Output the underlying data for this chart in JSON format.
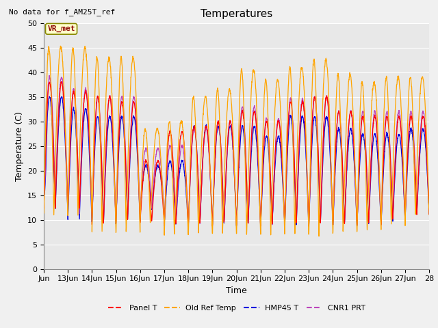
{
  "title": "Temperatures",
  "xlabel": "Time",
  "ylabel": "Temperature (C)",
  "top_left_note": "No data for f_AM25T_ref",
  "annotation_box": "VR_met",
  "ylim": [
    0,
    50
  ],
  "yticks": [
    0,
    5,
    10,
    15,
    20,
    25,
    30,
    35,
    40,
    45,
    50
  ],
  "x_start_day": 12,
  "x_end_day": 28,
  "xtick_days": [
    12,
    13,
    14,
    15,
    16,
    17,
    18,
    19,
    20,
    21,
    22,
    23,
    24,
    25,
    26,
    27,
    28
  ],
  "xtick_labels": [
    "Jun",
    "13Jun",
    "14Jun",
    "15Jun",
    "16Jun",
    "17Jun",
    "18Jun",
    "19Jun",
    "20Jun",
    "21Jun",
    "22Jun",
    "23Jun",
    "24Jun",
    "25Jun",
    "26Jun",
    "27Jun",
    "28"
  ],
  "colors": {
    "panel_t": "#ff0000",
    "old_ref_temp": "#ffa500",
    "hmp45_t": "#0000dd",
    "cnr1_prt": "#bb44bb"
  },
  "legend_labels": [
    "Panel T",
    "Old Ref Temp",
    "HMP45 T",
    "CNR1 PRT"
  ],
  "fig_bg": "#f0f0f0",
  "axes_bg": "#e8e8e8",
  "grid_color": "#ffffff",
  "title_fontsize": 11,
  "note_fontsize": 8,
  "label_fontsize": 9,
  "tick_fontsize": 8,
  "legend_fontsize": 8,
  "annotation_fontsize": 8,
  "day_peaks_orange": [
    45,
    45,
    43,
    43,
    28.5,
    30,
    35,
    36.5,
    40.5,
    38.5,
    41,
    42.5,
    39.5,
    38,
    39,
    39
  ],
  "day_peaks_red": [
    38,
    36,
    35,
    34,
    22,
    28,
    29,
    30,
    32,
    30,
    34,
    35,
    32,
    31,
    31,
    31
  ],
  "day_peaks_blue": [
    35,
    32.5,
    31,
    31,
    21,
    22,
    29,
    29,
    29,
    27,
    31,
    31,
    28.5,
    27.5,
    27.5,
    28.5
  ],
  "day_peaks_purple": [
    39,
    36.5,
    35,
    35,
    24.5,
    25,
    28.5,
    30,
    33,
    30.5,
    34.5,
    35,
    32,
    32,
    32,
    32
  ],
  "day_lows_orange": [
    11,
    11,
    7.5,
    7.5,
    9.5,
    7,
    7,
    7,
    7,
    7,
    7,
    7,
    7.5,
    7.5,
    9,
    11
  ],
  "day_lows_red": [
    12,
    12,
    9,
    9.5,
    9.5,
    9,
    9,
    9,
    9,
    9,
    9,
    9,
    9,
    9,
    9.5,
    11
  ],
  "day_lows_blue": [
    12,
    10,
    9.5,
    10,
    12,
    9,
    9,
    9,
    9,
    9,
    8.5,
    9,
    9,
    9,
    9.5,
    11
  ],
  "day_lows_purple": [
    15,
    11,
    10,
    11,
    12,
    9,
    9,
    9,
    9,
    9,
    9,
    9.5,
    9,
    9,
    10,
    11.5
  ]
}
